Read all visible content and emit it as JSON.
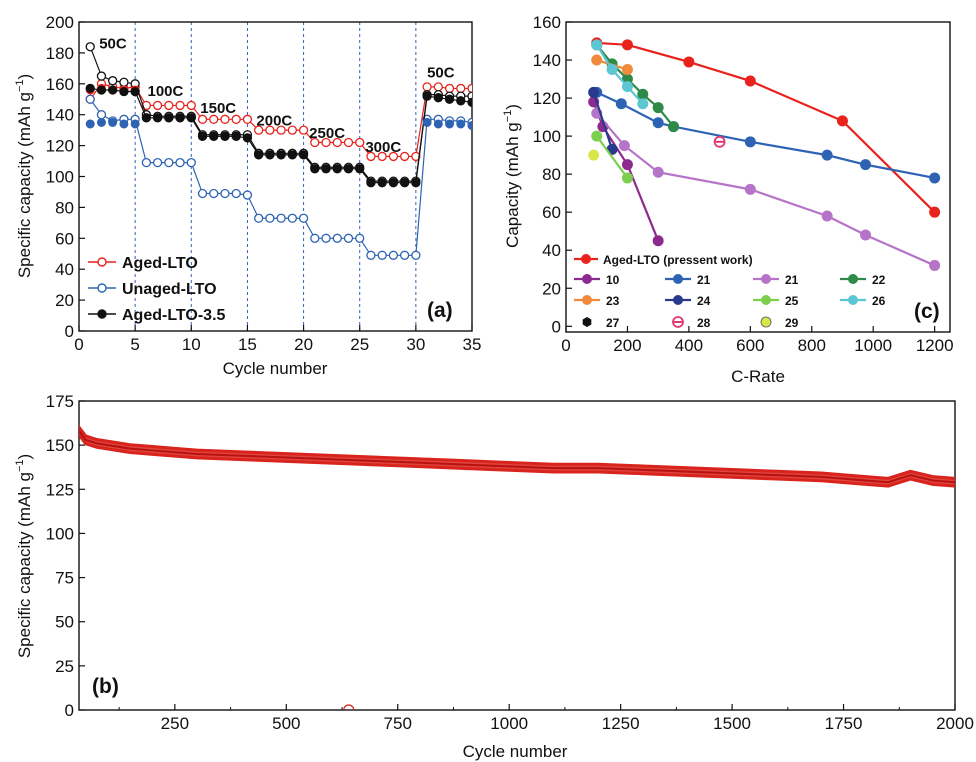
{
  "colors": {
    "aged": "#e8221c",
    "unaged": "#2e63b4",
    "aged35": "#111111",
    "long_cycle": "#d9231d"
  },
  "chart_data": [
    {
      "panel": "(a)",
      "type": "scatter",
      "xlabel": "Cycle number",
      "ylabel": "Specific capacity (mAh g",
      "ylabel_unit_sup": "−1",
      "ylabel_close": ")",
      "xlim": [
        0,
        35
      ],
      "ylim": [
        0,
        200
      ],
      "xticks": [
        0,
        5,
        10,
        15,
        20,
        25,
        30,
        35
      ],
      "yticks": [
        0,
        20,
        40,
        60,
        80,
        100,
        120,
        140,
        160,
        180,
        200
      ],
      "vlines": [
        5,
        10,
        15,
        20,
        25,
        30
      ],
      "rate_labels": [
        {
          "text": "50C",
          "x": 1.8,
          "y": 183
        },
        {
          "text": "100C",
          "x": 6.1,
          "y": 152
        },
        {
          "text": "150C",
          "x": 10.8,
          "y": 141
        },
        {
          "text": "200C",
          "x": 15.8,
          "y": 133
        },
        {
          "text": "250C",
          "x": 20.5,
          "y": 125
        },
        {
          "text": "300C",
          "x": 25.5,
          "y": 116
        },
        {
          "text": "50C",
          "x": 31.0,
          "y": 164
        }
      ],
      "legend": [
        "Aged-LTO",
        "Unaged-LTO",
        "Aged-LTO-3.5"
      ],
      "x": [
        1,
        2,
        3,
        4,
        5,
        6,
        7,
        8,
        9,
        10,
        11,
        12,
        13,
        14,
        15,
        16,
        17,
        18,
        19,
        20,
        21,
        22,
        23,
        24,
        25,
        26,
        27,
        28,
        29,
        30,
        31,
        32,
        33,
        34,
        35
      ],
      "series": [
        {
          "name": "Aged-LTO",
          "style": "open",
          "values": [
            150,
            160,
            158,
            157,
            158,
            146,
            146,
            146,
            146,
            146,
            137,
            137,
            137,
            137,
            137,
            130,
            130,
            130,
            130,
            130,
            122,
            122,
            122,
            122,
            122,
            113,
            113,
            113,
            113,
            113,
            158,
            158,
            157,
            157,
            157
          ]
        },
        {
          "name": "Aged-LTO",
          "style": "filled",
          "values": [
            156,
            157,
            156,
            156,
            156,
            141,
            141,
            141,
            141,
            140,
            134,
            134,
            134,
            134,
            134,
            0,
            0,
            0,
            0,
            0,
            0,
            0,
            0,
            0,
            0,
            0,
            0,
            0,
            0,
            0,
            0,
            0,
            0,
            0,
            0
          ],
          "hidden": true
        },
        {
          "name": "Unaged-LTO",
          "style": "open",
          "values": [
            150,
            140,
            136,
            137,
            137,
            109,
            109,
            109,
            109,
            109,
            89,
            89,
            89,
            89,
            88,
            73,
            73,
            73,
            73,
            73,
            60,
            60,
            60,
            60,
            60,
            49,
            49,
            49,
            49,
            49,
            137,
            137,
            136,
            136,
            135
          ]
        },
        {
          "name": "Unaged-LTO",
          "style": "filled",
          "values": [
            134,
            135,
            135,
            134,
            134,
            0,
            0,
            0,
            0,
            0,
            0,
            0,
            0,
            0,
            0,
            0,
            0,
            0,
            0,
            0,
            0,
            0,
            0,
            0,
            0,
            0,
            0,
            0,
            0,
            0,
            135,
            134,
            134,
            134,
            133
          ],
          "hidden": true
        },
        {
          "name": "Aged-LTO-3.5",
          "style": "open",
          "values": [
            184,
            165,
            162,
            161,
            160,
            140,
            139,
            139,
            139,
            139,
            127,
            127,
            127,
            127,
            127,
            115,
            115,
            115,
            115,
            115,
            106,
            106,
            106,
            106,
            106,
            97,
            97,
            97,
            97,
            97,
            153,
            153,
            152,
            152,
            152
          ]
        },
        {
          "name": "Aged-LTO-3.5",
          "style": "filled",
          "values": [
            157,
            156,
            156,
            155,
            155,
            138,
            138,
            138,
            138,
            138,
            126,
            126,
            126,
            126,
            125,
            114,
            114,
            114,
            114,
            114,
            105,
            105,
            105,
            105,
            105,
            96,
            96,
            96,
            96,
            96,
            152,
            151,
            150,
            149,
            148
          ]
        }
      ]
    },
    {
      "panel": "(c)",
      "type": "line",
      "xlabel": "C-Rate",
      "ylabel": "Capacity (mAh g",
      "ylabel_unit_sup": "−1",
      "ylabel_close": ")",
      "xlim": [
        0,
        1250
      ],
      "ylim": [
        -3,
        160
      ],
      "xticks": [
        0,
        200,
        400,
        600,
        800,
        1000,
        1200
      ],
      "yticks": [
        0,
        20,
        40,
        60,
        80,
        100,
        120,
        140,
        160
      ],
      "series": [
        {
          "name": "Aged-LTO (pressent work)",
          "color": "#e8221c",
          "marker": "circle",
          "x": [
            100,
            200,
            400,
            600,
            900,
            1200
          ],
          "y": [
            149,
            148,
            139,
            129,
            108,
            60
          ]
        },
        {
          "name": "10",
          "color": "#8e2a8f",
          "marker": "circle",
          "x": [
            90,
            120,
            200,
            300
          ],
          "y": [
            118,
            105,
            85,
            45
          ]
        },
        {
          "name": "21",
          "color": "#2e63b4",
          "marker": "circle",
          "x": [
            100,
            180,
            300,
            350,
            600,
            850,
            975,
            1200
          ],
          "y": [
            123,
            117,
            107,
            105,
            97,
            90,
            85,
            78
          ]
        },
        {
          "name": "21",
          "color": "#b574c8",
          "marker": "circle",
          "x": [
            100,
            190,
            300,
            600,
            850,
            975,
            1200
          ],
          "y": [
            112,
            95,
            81,
            72,
            58,
            48,
            32
          ]
        },
        {
          "name": "22",
          "color": "#2e8a49",
          "marker": "circle",
          "x": [
            100,
            150,
            200,
            250,
            300,
            350
          ],
          "y": [
            148,
            138,
            130,
            122,
            115,
            105
          ]
        },
        {
          "name": "23",
          "color": "#f08a3c",
          "marker": "circle",
          "x": [
            100,
            200
          ],
          "y": [
            140,
            135
          ]
        },
        {
          "name": "24",
          "color": "#283a8c",
          "marker": "circle",
          "x": [
            90,
            150
          ],
          "y": [
            123,
            93
          ]
        },
        {
          "name": "25",
          "color": "#7ccf4d",
          "marker": "circle",
          "x": [
            100,
            200
          ],
          "y": [
            100,
            78
          ]
        },
        {
          "name": "26",
          "color": "#5cc6d3",
          "marker": "circle",
          "x": [
            100,
            150,
            200,
            250
          ],
          "y": [
            148,
            135,
            126,
            117
          ]
        },
        {
          "name": "27",
          "color": "#111111",
          "marker": "hexagon",
          "x": [],
          "y": []
        },
        {
          "name": "28",
          "color": "#e0386f",
          "marker": "half-circle",
          "x": [
            500
          ],
          "y": [
            97
          ]
        },
        {
          "name": "29",
          "color": "#d9e64a",
          "marker": "circle",
          "x": [
            90
          ],
          "y": [
            90
          ]
        }
      ]
    },
    {
      "panel": "(b)",
      "type": "scatter",
      "xlabel": "Cycle number",
      "ylabel": "Specific capacity (mAh g",
      "ylabel_unit_sup": "−1",
      "ylabel_close": ")",
      "xlim": [
        35,
        2000
      ],
      "ylim": [
        0,
        175
      ],
      "xticks": [
        250,
        500,
        750,
        1000,
        1250,
        1500,
        1750,
        2000
      ],
      "yticks": [
        0,
        25,
        50,
        75,
        100,
        125,
        150,
        175
      ],
      "series": [
        {
          "name": "",
          "x": [
            35,
            50,
            75,
            100,
            150,
            200,
            250,
            300,
            400,
            500,
            600,
            700,
            800,
            900,
            1000,
            1100,
            1200,
            1300,
            1400,
            1500,
            1600,
            1700,
            1800,
            1850,
            1900,
            1950,
            2000
          ],
          "values": [
            158,
            153,
            151,
            150,
            148,
            147,
            146,
            145,
            144,
            143,
            142,
            141,
            140,
            139,
            138,
            137,
            137,
            136,
            135,
            134,
            133,
            132,
            130,
            129,
            133,
            130,
            129
          ]
        }
      ],
      "outlier": {
        "x": 640,
        "y": 0
      }
    }
  ]
}
